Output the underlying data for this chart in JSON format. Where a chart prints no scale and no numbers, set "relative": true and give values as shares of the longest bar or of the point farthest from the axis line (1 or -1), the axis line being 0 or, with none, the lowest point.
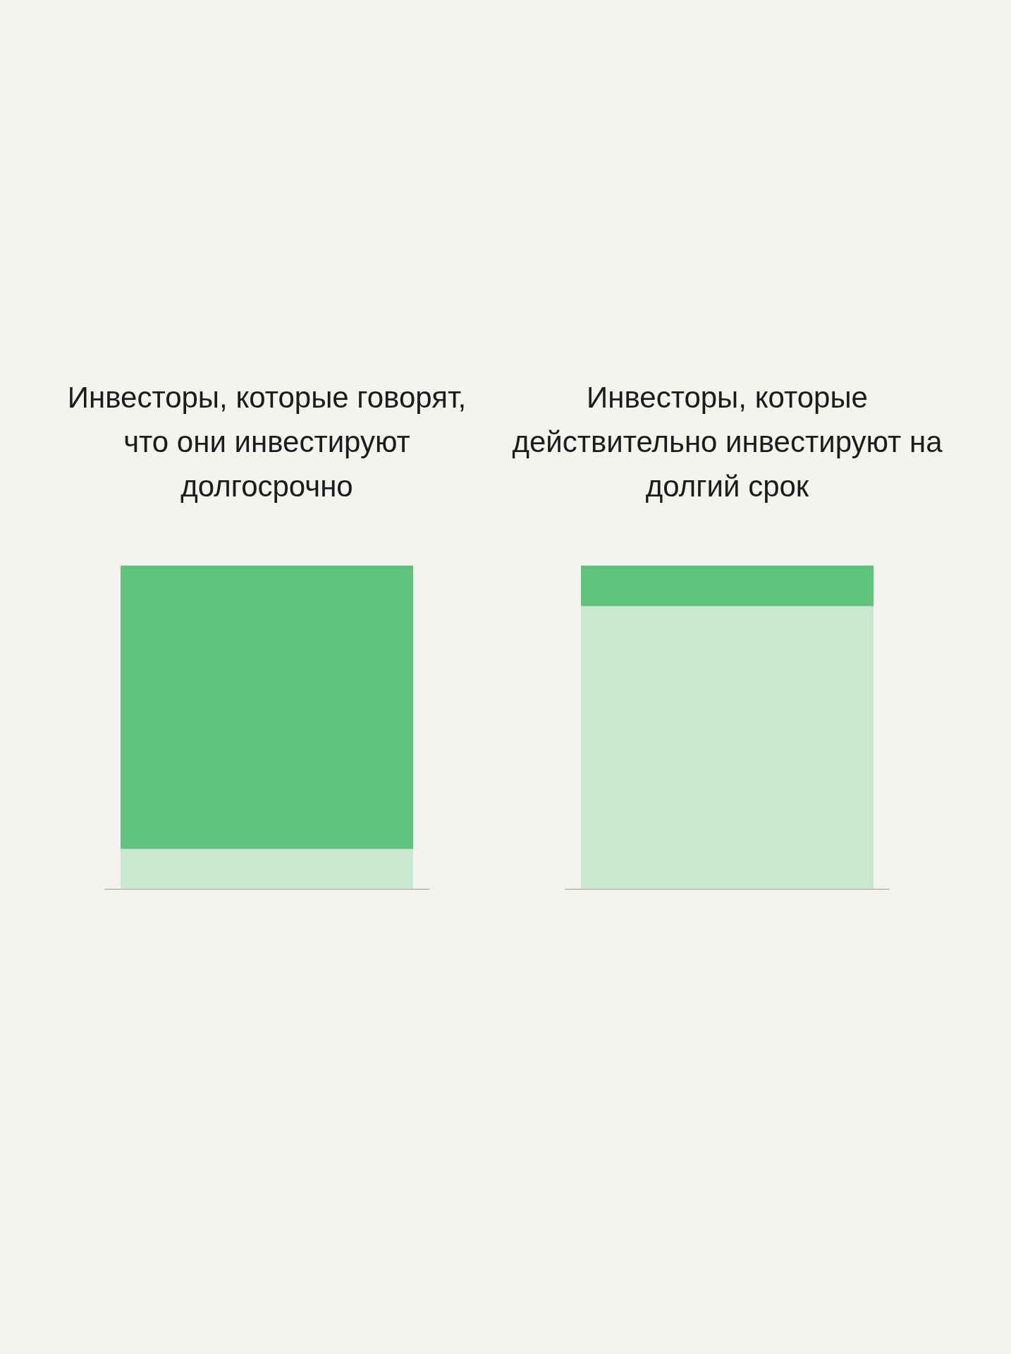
{
  "chart_data": [
    {
      "type": "bar",
      "title": "Инвесторы, которые говорят, что они инвестируют долгосрочно",
      "relative": true,
      "stacked": true,
      "categories": [
        null
      ],
      "series": [
        {
          "color": "#c8e8cf",
          "values": [
            0.125
          ]
        },
        {
          "color": "#5ec47c",
          "values": [
            0.875
          ]
        }
      ]
    },
    {
      "type": "bar",
      "title": "Инвесторы, которые действительно инвестируют на долгий срок",
      "relative": true,
      "stacked": true,
      "categories": [
        null
      ],
      "series": [
        {
          "color": "#c8e8cf",
          "values": [
            0.875
          ]
        },
        {
          "color": "#5ec47c",
          "values": [
            0.125
          ]
        }
      ]
    }
  ]
}
